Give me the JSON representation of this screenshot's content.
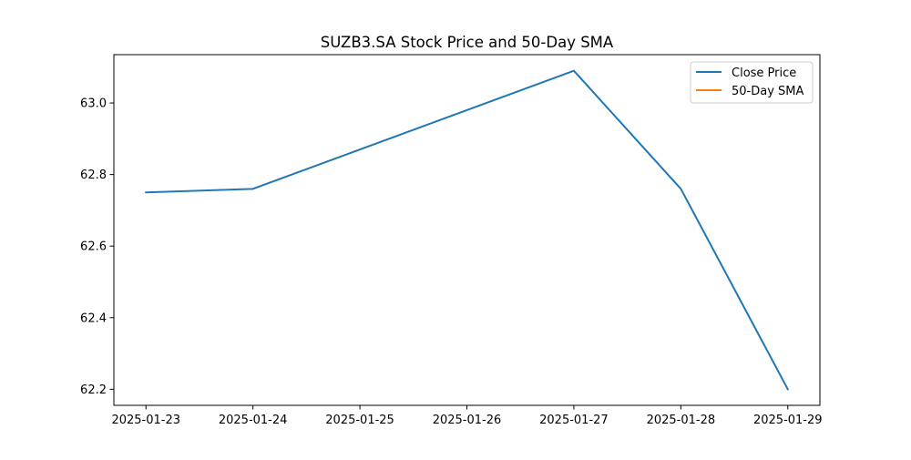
{
  "chart_data": {
    "type": "line",
    "title": "SUZB3.SA Stock Price and 50-Day SMA",
    "xlabel": "",
    "ylabel": "",
    "x": [
      "2025-01-23",
      "2025-01-24",
      "2025-01-25",
      "2025-01-26",
      "2025-01-27",
      "2025-01-28",
      "2025-01-29"
    ],
    "x_ticks": [
      "2025-01-23",
      "2025-01-24",
      "2025-01-25",
      "2025-01-26",
      "2025-01-27",
      "2025-01-28",
      "2025-01-29"
    ],
    "series": [
      {
        "name": "Close Price",
        "color": "#1f77b4",
        "points": [
          {
            "x": "2025-01-23",
            "y": 62.75
          },
          {
            "x": "2025-01-24",
            "y": 62.76
          },
          {
            "x": "2025-01-27",
            "y": 63.09
          },
          {
            "x": "2025-01-28",
            "y": 62.76
          },
          {
            "x": "2025-01-29",
            "y": 62.2
          }
        ]
      },
      {
        "name": "50-Day SMA",
        "color": "#ff7f0e",
        "points": []
      }
    ],
    "y_ticks": [
      "62.2",
      "62.4",
      "62.6",
      "62.8",
      "63.0"
    ],
    "ylim": [
      62.155,
      63.135
    ],
    "xlim": [
      "2025-01-22.7",
      "2025-01-29.3"
    ],
    "grid": false,
    "legend_position": "top-right"
  }
}
